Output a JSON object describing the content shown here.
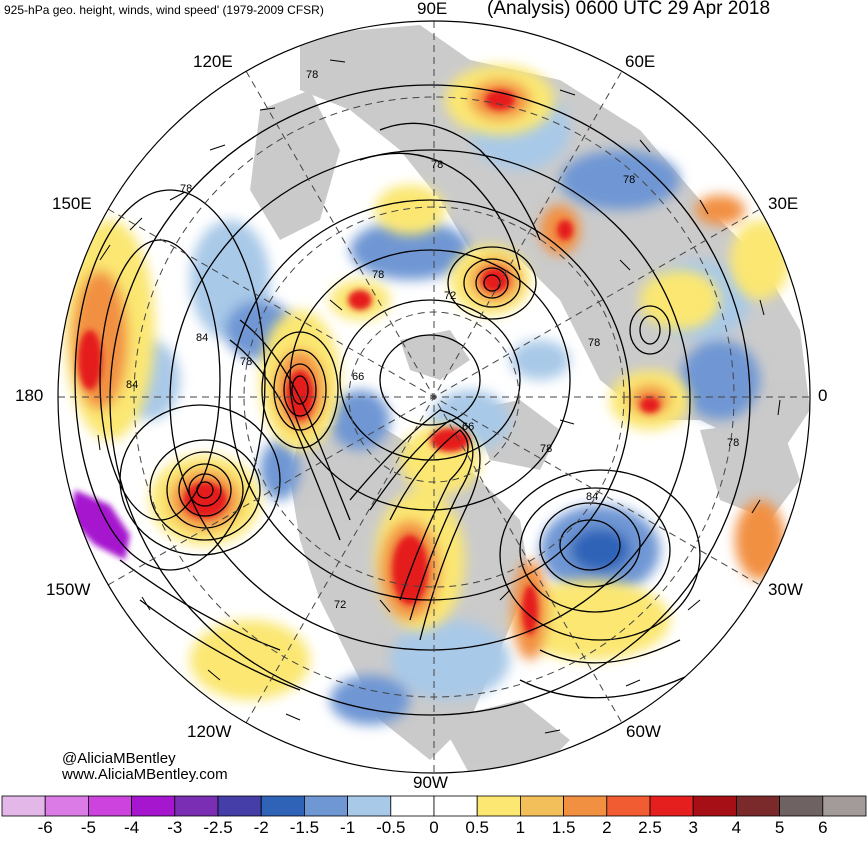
{
  "header": {
    "title_left": "925-hPa geo. height, winds, wind speed' (1979-2009 CFSR)",
    "title_right": "(Analysis) 0600 UTC 29 Apr 2018"
  },
  "longitude_labels": {
    "top": "90E",
    "upper_left": "120E",
    "upper_right": "60E",
    "left_upper": "150E",
    "right_upper": "30E",
    "left": "180",
    "right": "0",
    "left_lower": "150W",
    "right_lower": "30W",
    "lower_left": "120W",
    "lower_right": "60W",
    "bottom": "90W"
  },
  "contour_labels": [
    "78",
    "78",
    "78",
    "78",
    "78",
    "78",
    "78",
    "78",
    "78",
    "84",
    "84",
    "84",
    "72",
    "72",
    "66",
    "66"
  ],
  "credits": {
    "line1": "@AliciaMBentley",
    "line2": "www.AliciaMBentley.com"
  },
  "colorbar": {
    "colors": [
      "#e3b7e8",
      "#db7ce6",
      "#cc44dd",
      "#a616cf",
      "#7a2eb3",
      "#463ea8",
      "#2f63b8",
      "#6f97d4",
      "#a9c9e8",
      "#ffffff",
      "#ffffff",
      "#fbe772",
      "#f2bf5a",
      "#f29042",
      "#f25c33",
      "#e51e1e",
      "#a50f15",
      "#7a2a2a",
      "#6e6262",
      "#a39a9a"
    ],
    "labels": [
      "-6",
      "-5",
      "-4",
      "-3",
      "-2.5",
      "-2",
      "-1.5",
      "-1",
      "-0.5",
      "0",
      "0.5",
      "1",
      "1.5",
      "2",
      "2.5",
      "3",
      "4",
      "5",
      "6"
    ]
  },
  "map_colors": {
    "land": "#c8c8c8",
    "ocean": "#ffffff",
    "positive_weak": "#fbe772",
    "positive_mid": "#f29042",
    "positive_strong": "#e51e1e",
    "negative_weak": "#a9c9e8",
    "negative_mid": "#6f97d4",
    "negative_strong": "#a616cf"
  }
}
